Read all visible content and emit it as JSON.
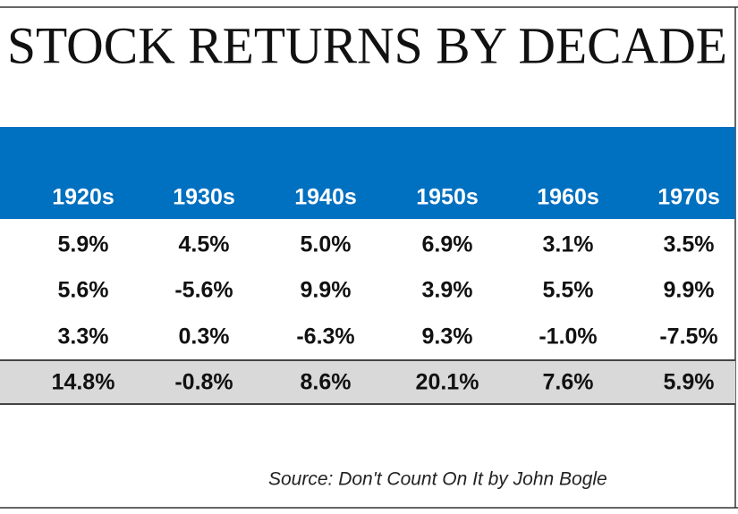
{
  "header": {
    "title": "STOCK RETURNS BY DECADE"
  },
  "table": {
    "columns": [
      "1920s",
      "1930s",
      "1940s",
      "1950s",
      "1960s",
      "1970s"
    ],
    "rows": [
      [
        "5.9%",
        "4.5%",
        "5.0%",
        "6.9%",
        "3.1%",
        "3.5%"
      ],
      [
        "5.6%",
        "-5.6%",
        "9.9%",
        "3.9%",
        "5.5%",
        "9.9%"
      ],
      [
        "3.3%",
        "0.3%",
        "-6.3%",
        "9.3%",
        "-1.0%",
        "-7.5%"
      ],
      [
        "14.8%",
        "-0.8%",
        "8.6%",
        "20.1%",
        "7.6%",
        "5.9%"
      ]
    ]
  },
  "footer": {
    "source": "Source: Don't Count On It by John Bogle"
  }
}
